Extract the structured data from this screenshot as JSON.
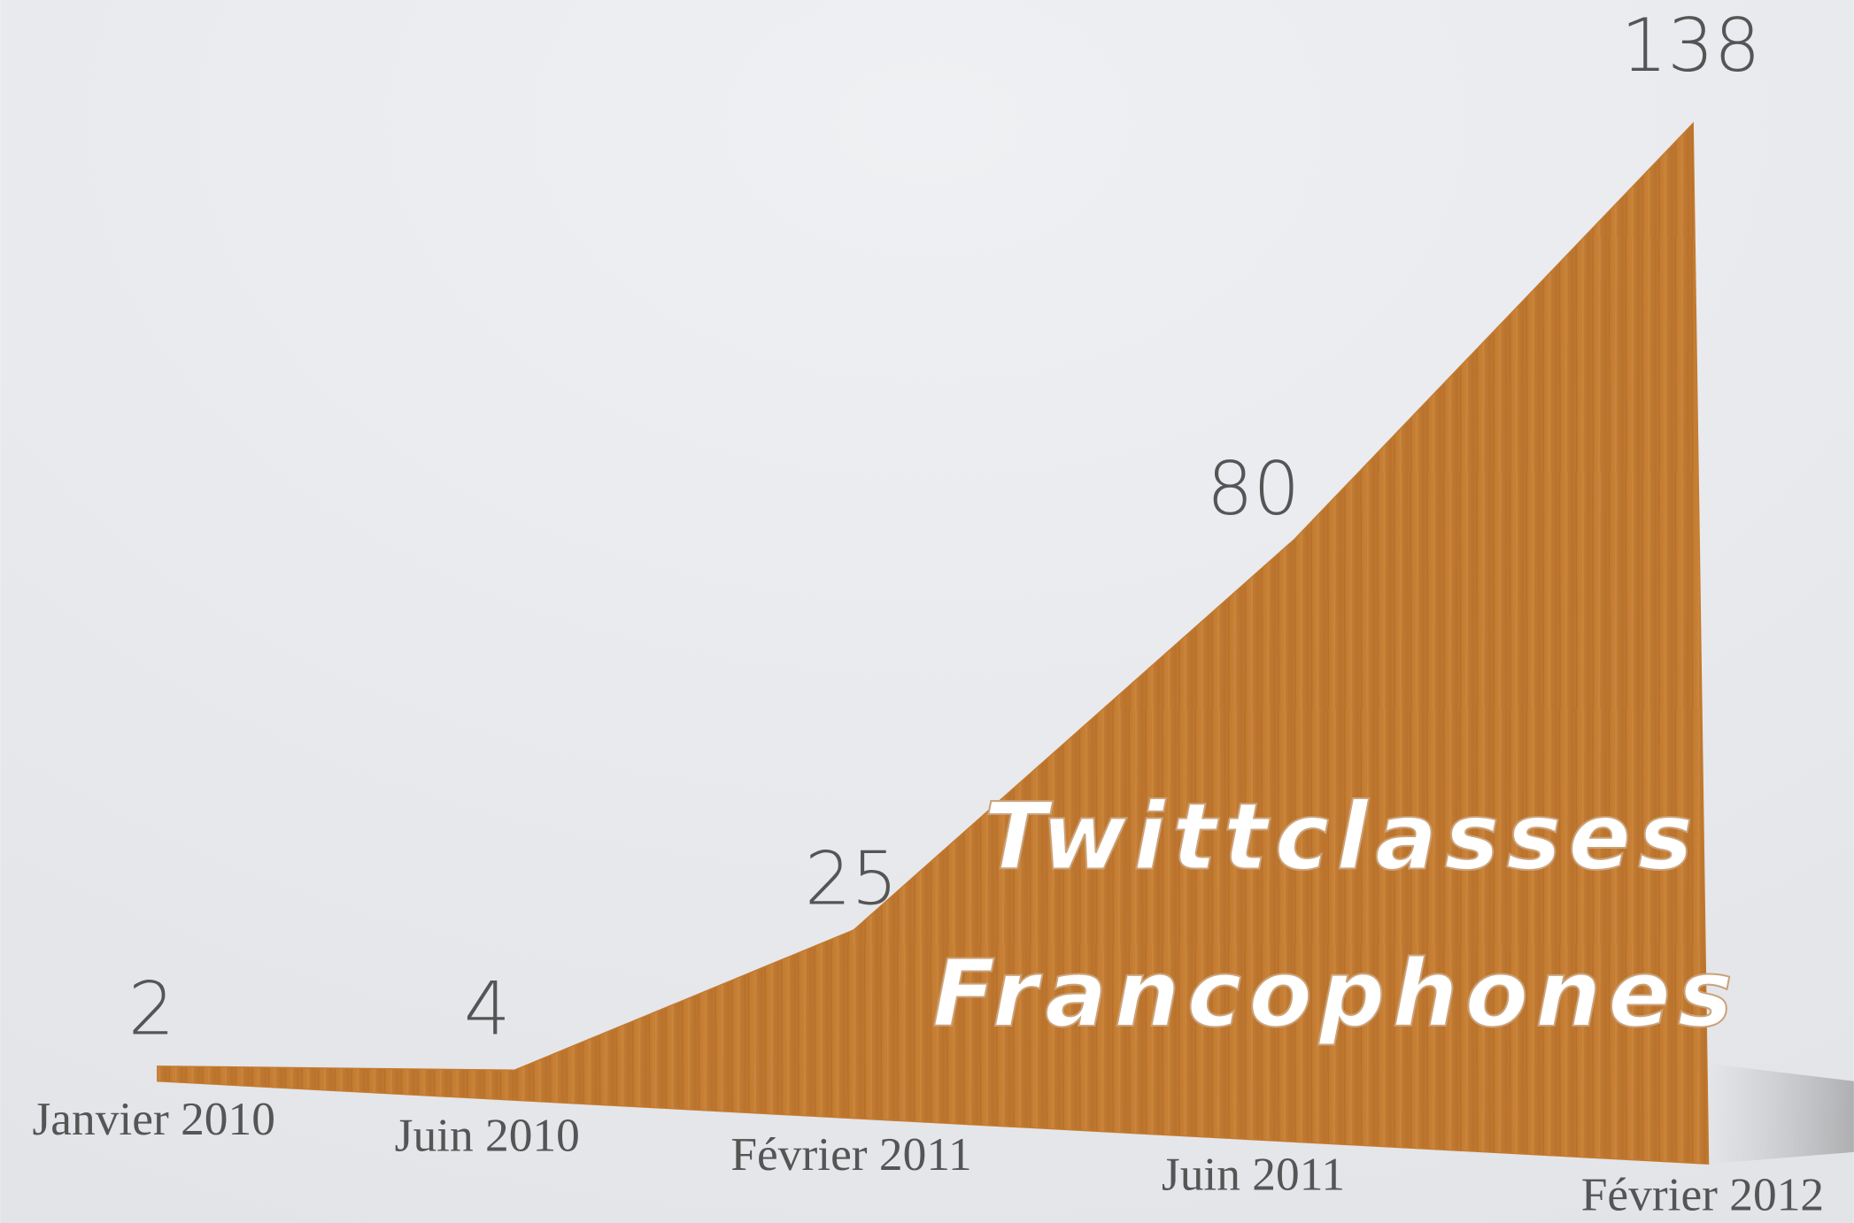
{
  "chart_data": {
    "type": "area",
    "title": [
      "Twittclasses",
      "Francophones"
    ],
    "categories": [
      "Janvier 2010",
      "Juin 2010",
      "Février 2011",
      "Juin 2011",
      "Février 2012"
    ],
    "values": [
      2,
      4,
      25,
      80,
      138
    ],
    "color": "#c57a2e"
  }
}
